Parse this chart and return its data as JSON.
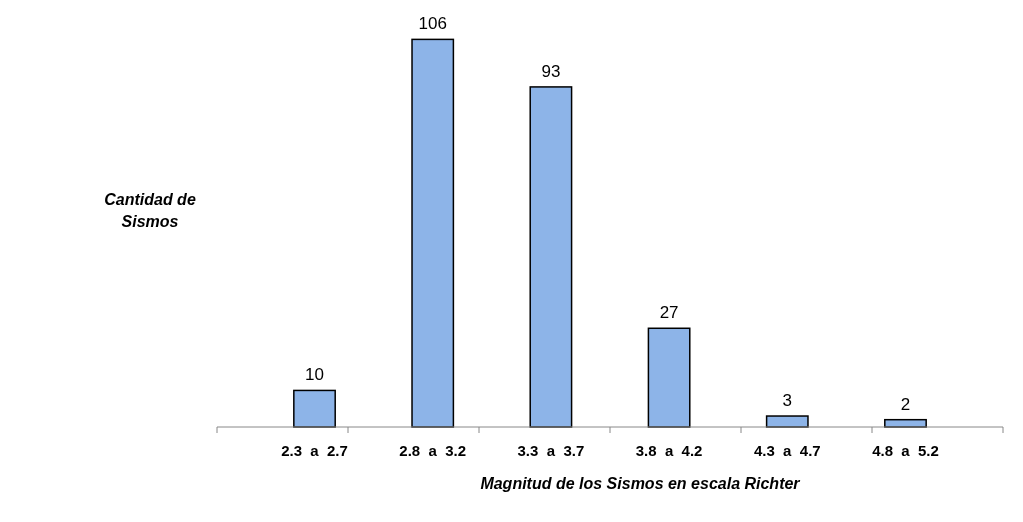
{
  "chart_data": {
    "type": "bar",
    "xlabel": "Magnitud de los Sismos en escala Richter",
    "ylabel": "Cantidad de Sismos",
    "categories": [
      "2.3  a  2.7",
      "2.8  a  3.2",
      "3.3  a  3.7",
      "3.8  a  4.2",
      "4.3  a  4.7",
      "4.8  a  5.2"
    ],
    "values": [
      10,
      106,
      93,
      27,
      3,
      2
    ],
    "color": "#8db4e8",
    "data_labels": true
  }
}
